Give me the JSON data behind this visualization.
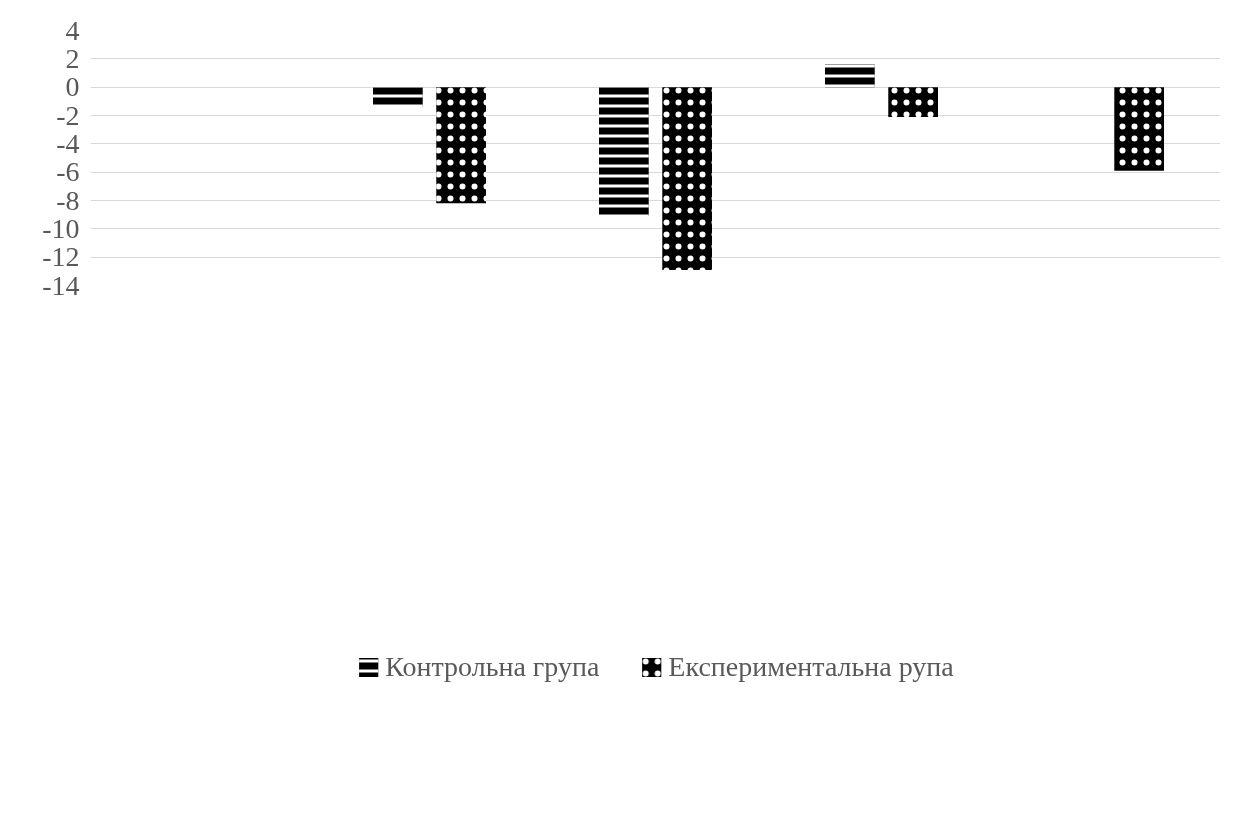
{
  "chart_data": {
    "type": "bar",
    "categories": [
      null,
      null,
      null,
      null,
      null
    ],
    "series": [
      {
        "name": "Контрольна група",
        "color": "#000000",
        "values": [
          null,
          -1.4,
          -9.1,
          1.6,
          null
        ]
      },
      {
        "name": "Експериментальна рупа",
        "color": "#000000",
        "values": [
          null,
          -8.2,
          -12.9,
          -2.1,
          -5.9
        ]
      }
    ],
    "ylim": [
      -14,
      4
    ],
    "yticks": [
      -14,
      -12,
      -10,
      -8,
      -6,
      -4,
      -2,
      0,
      2,
      4
    ],
    "grid": "y",
    "legend": "bottom",
    "tick_labels": "y"
  }
}
